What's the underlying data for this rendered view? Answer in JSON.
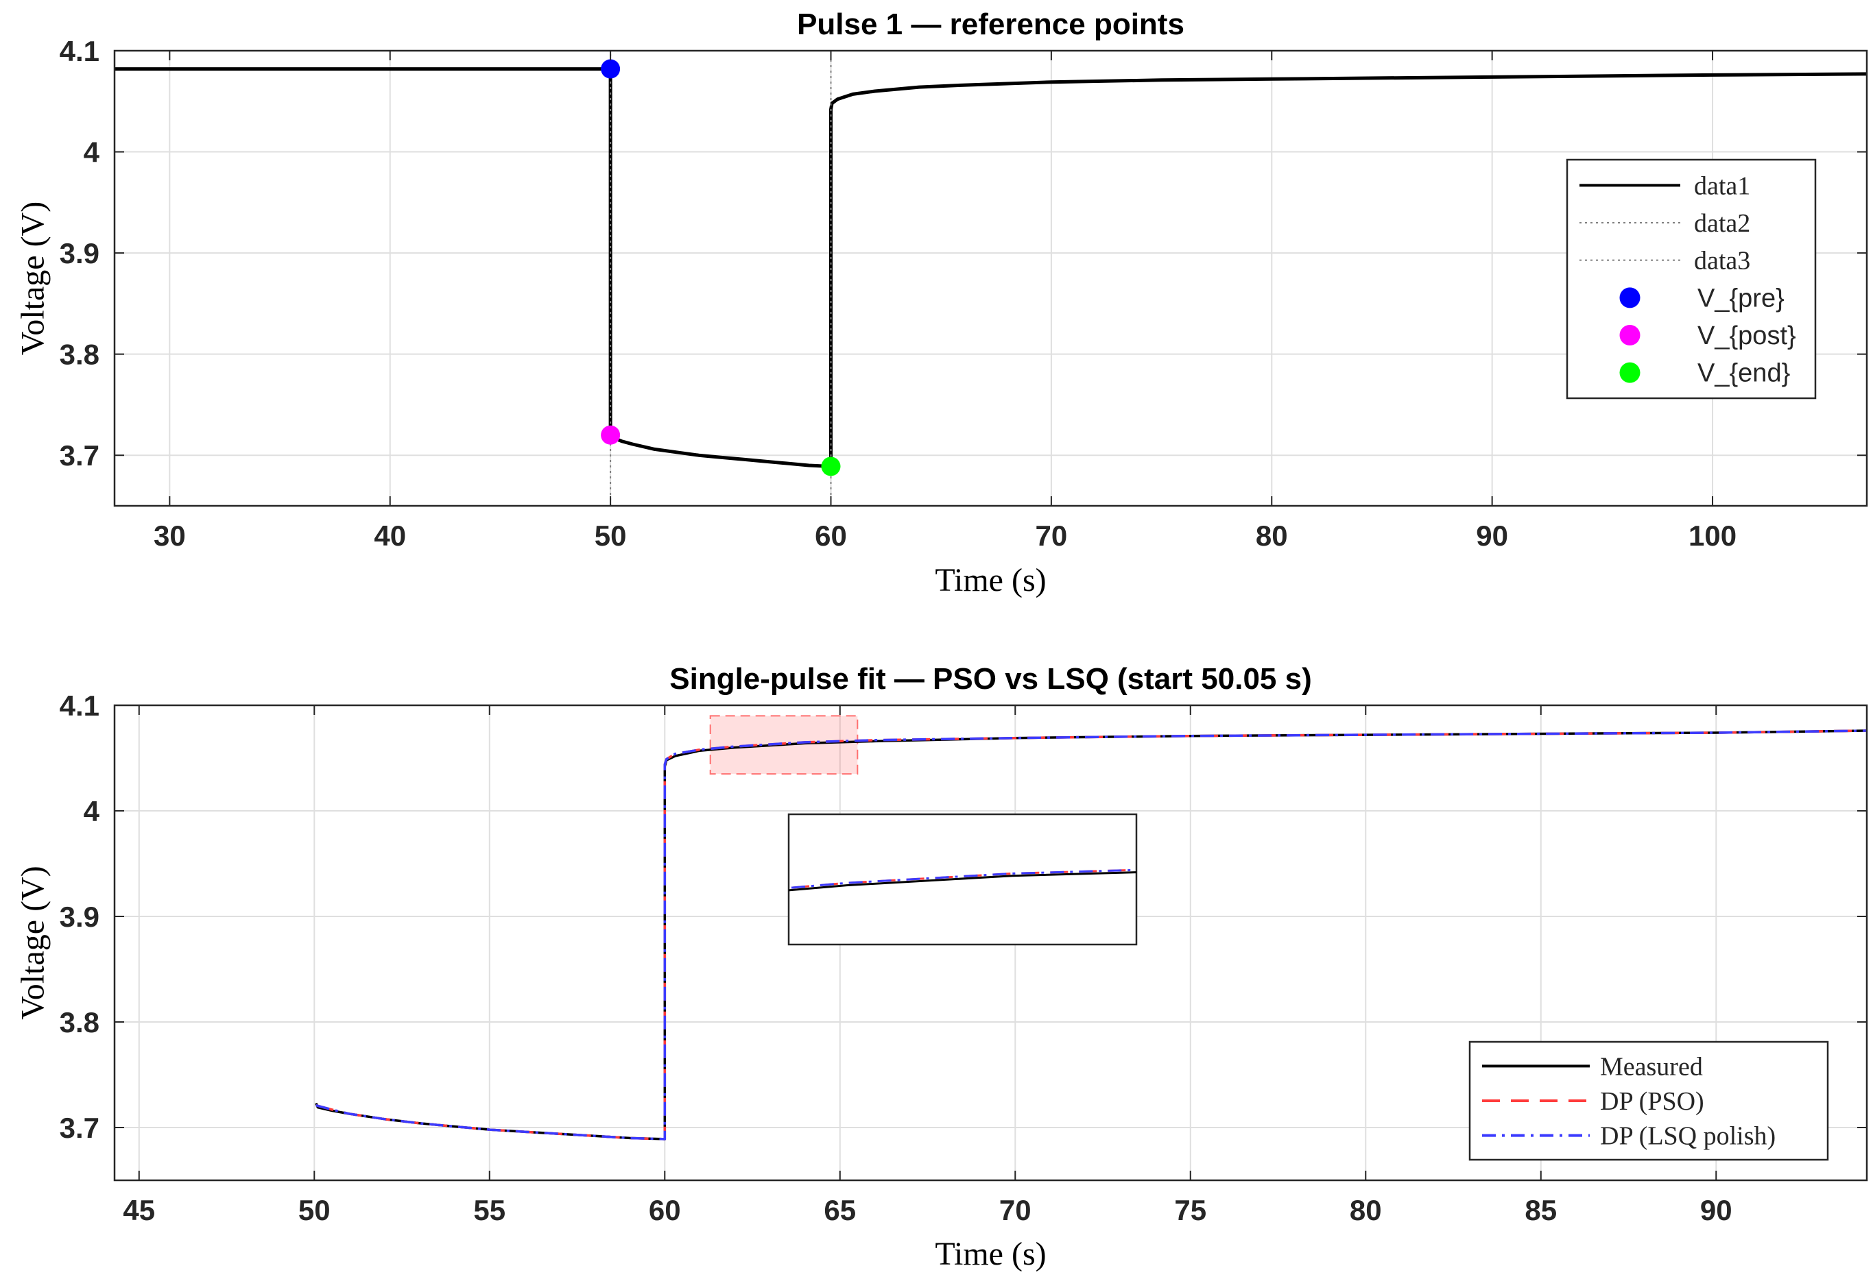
{
  "chart_data": [
    {
      "type": "line",
      "title": "Pulse 1 — reference points",
      "xlabel": "Time (s)",
      "ylabel": "Voltage (V)",
      "xlim": [
        27.5,
        107
      ],
      "ylim": [
        3.65,
        4.1
      ],
      "xticks": [
        30,
        40,
        50,
        60,
        70,
        80,
        90,
        100
      ],
      "xtick_labels": [
        "30",
        "40",
        "50",
        "60",
        "70",
        "80",
        "90",
        "100"
      ],
      "yticks": [
        3.7,
        3.8,
        3.9,
        4.0,
        4.1
      ],
      "ytick_labels": [
        "3.7",
        "3.8",
        "3.9",
        "4",
        "4.1"
      ],
      "grid": true,
      "legend_position": "right",
      "series": [
        {
          "name": "data1",
          "style": "solid",
          "color": "#000000",
          "x": [
            27.5,
            50,
            50,
            50.05,
            50.5,
            51,
            52,
            53,
            54,
            55,
            56,
            57,
            58,
            59,
            60,
            60,
            60.05,
            60.3,
            61,
            62,
            64,
            66,
            70,
            75,
            80,
            90,
            100,
            107
          ],
          "y": [
            4.082,
            4.082,
            3.72,
            3.718,
            3.714,
            3.711,
            3.706,
            3.703,
            3.7,
            3.698,
            3.696,
            3.694,
            3.692,
            3.69,
            3.689,
            4.042,
            4.048,
            4.052,
            4.057,
            4.06,
            4.064,
            4.066,
            4.069,
            4.071,
            4.072,
            4.074,
            4.076,
            4.077
          ]
        },
        {
          "name": "data2",
          "style": "dotted",
          "color": "#7f7f7f",
          "x": [
            50,
            50
          ],
          "y": [
            3.65,
            4.1
          ]
        },
        {
          "name": "data3",
          "style": "dotted",
          "color": "#7f7f7f",
          "x": [
            60,
            60
          ],
          "y": [
            3.65,
            4.1
          ]
        },
        {
          "name": "V_{pre}",
          "style": "marker",
          "color": "#0000ff",
          "x": [
            50
          ],
          "y": [
            4.082
          ]
        },
        {
          "name": "V_{post}",
          "style": "marker",
          "color": "#ff00ff",
          "x": [
            50
          ],
          "y": [
            3.72
          ]
        },
        {
          "name": "V_{end}",
          "style": "marker",
          "color": "#00ff00",
          "x": [
            60
          ],
          "y": [
            3.689
          ]
        }
      ]
    },
    {
      "type": "line",
      "title": "Single-pulse fit — PSO vs LSQ (start 50.05 s)",
      "xlabel": "Time (s)",
      "ylabel": "Voltage (V)",
      "xlim": [
        44.3,
        94.3
      ],
      "ylim": [
        3.65,
        4.1
      ],
      "xticks": [
        45,
        50,
        55,
        60,
        65,
        70,
        75,
        80,
        85,
        90
      ],
      "xtick_labels": [
        "45",
        "50",
        "55",
        "60",
        "65",
        "70",
        "75",
        "80",
        "85",
        "90"
      ],
      "yticks": [
        3.7,
        3.8,
        3.9,
        4.0,
        4.1
      ],
      "ytick_labels": [
        "3.7",
        "3.8",
        "3.9",
        "4",
        "4.1"
      ],
      "grid": true,
      "legend_position": "bottom-right",
      "zoom_region": {
        "x": [
          61.3,
          65.5
        ],
        "y": [
          4.035,
          4.09
        ]
      },
      "series": [
        {
          "name": "Measured",
          "style": "solid",
          "color": "#000000",
          "x": [
            50.05,
            50.1,
            50.5,
            51,
            52,
            53,
            54,
            55,
            56,
            57,
            58,
            59,
            60,
            60,
            60.05,
            60.3,
            61,
            62,
            64,
            66,
            70,
            75,
            80,
            90,
            94.3
          ],
          "y": [
            3.723,
            3.719,
            3.716,
            3.713,
            3.708,
            3.704,
            3.701,
            3.698,
            3.696,
            3.694,
            3.692,
            3.69,
            3.689,
            4.042,
            4.048,
            4.052,
            4.057,
            4.06,
            4.064,
            4.066,
            4.069,
            4.071,
            4.072,
            4.074,
            4.076
          ]
        },
        {
          "name": "DP (PSO)",
          "style": "dashed",
          "color": "#ff3b3b",
          "x": [
            50.05,
            50.5,
            51,
            52,
            53,
            54,
            55,
            56,
            57,
            58,
            59,
            60,
            60,
            60.05,
            60.3,
            61,
            62,
            64,
            66,
            70,
            75,
            80,
            90,
            94.3
          ],
          "y": [
            3.721,
            3.717,
            3.713,
            3.708,
            3.704,
            3.701,
            3.698,
            3.696,
            3.694,
            3.692,
            3.69,
            3.689,
            4.044,
            4.049,
            4.054,
            4.058,
            4.061,
            4.065,
            4.067,
            4.069,
            4.071,
            4.072,
            4.074,
            4.076
          ]
        },
        {
          "name": "DP (LSQ polish)",
          "style": "dashdot",
          "color": "#3b3bff",
          "x": [
            50.05,
            50.5,
            51,
            52,
            53,
            54,
            55,
            56,
            57,
            58,
            59,
            60,
            60,
            60.05,
            60.3,
            61,
            62,
            64,
            66,
            70,
            75,
            80,
            90,
            94.3
          ],
          "y": [
            3.721,
            3.717,
            3.713,
            3.708,
            3.704,
            3.701,
            3.698,
            3.696,
            3.694,
            3.692,
            3.69,
            3.689,
            4.044,
            4.049,
            4.054,
            4.058,
            4.061,
            4.065,
            4.067,
            4.069,
            4.071,
            4.072,
            4.074,
            4.076
          ]
        }
      ]
    }
  ]
}
